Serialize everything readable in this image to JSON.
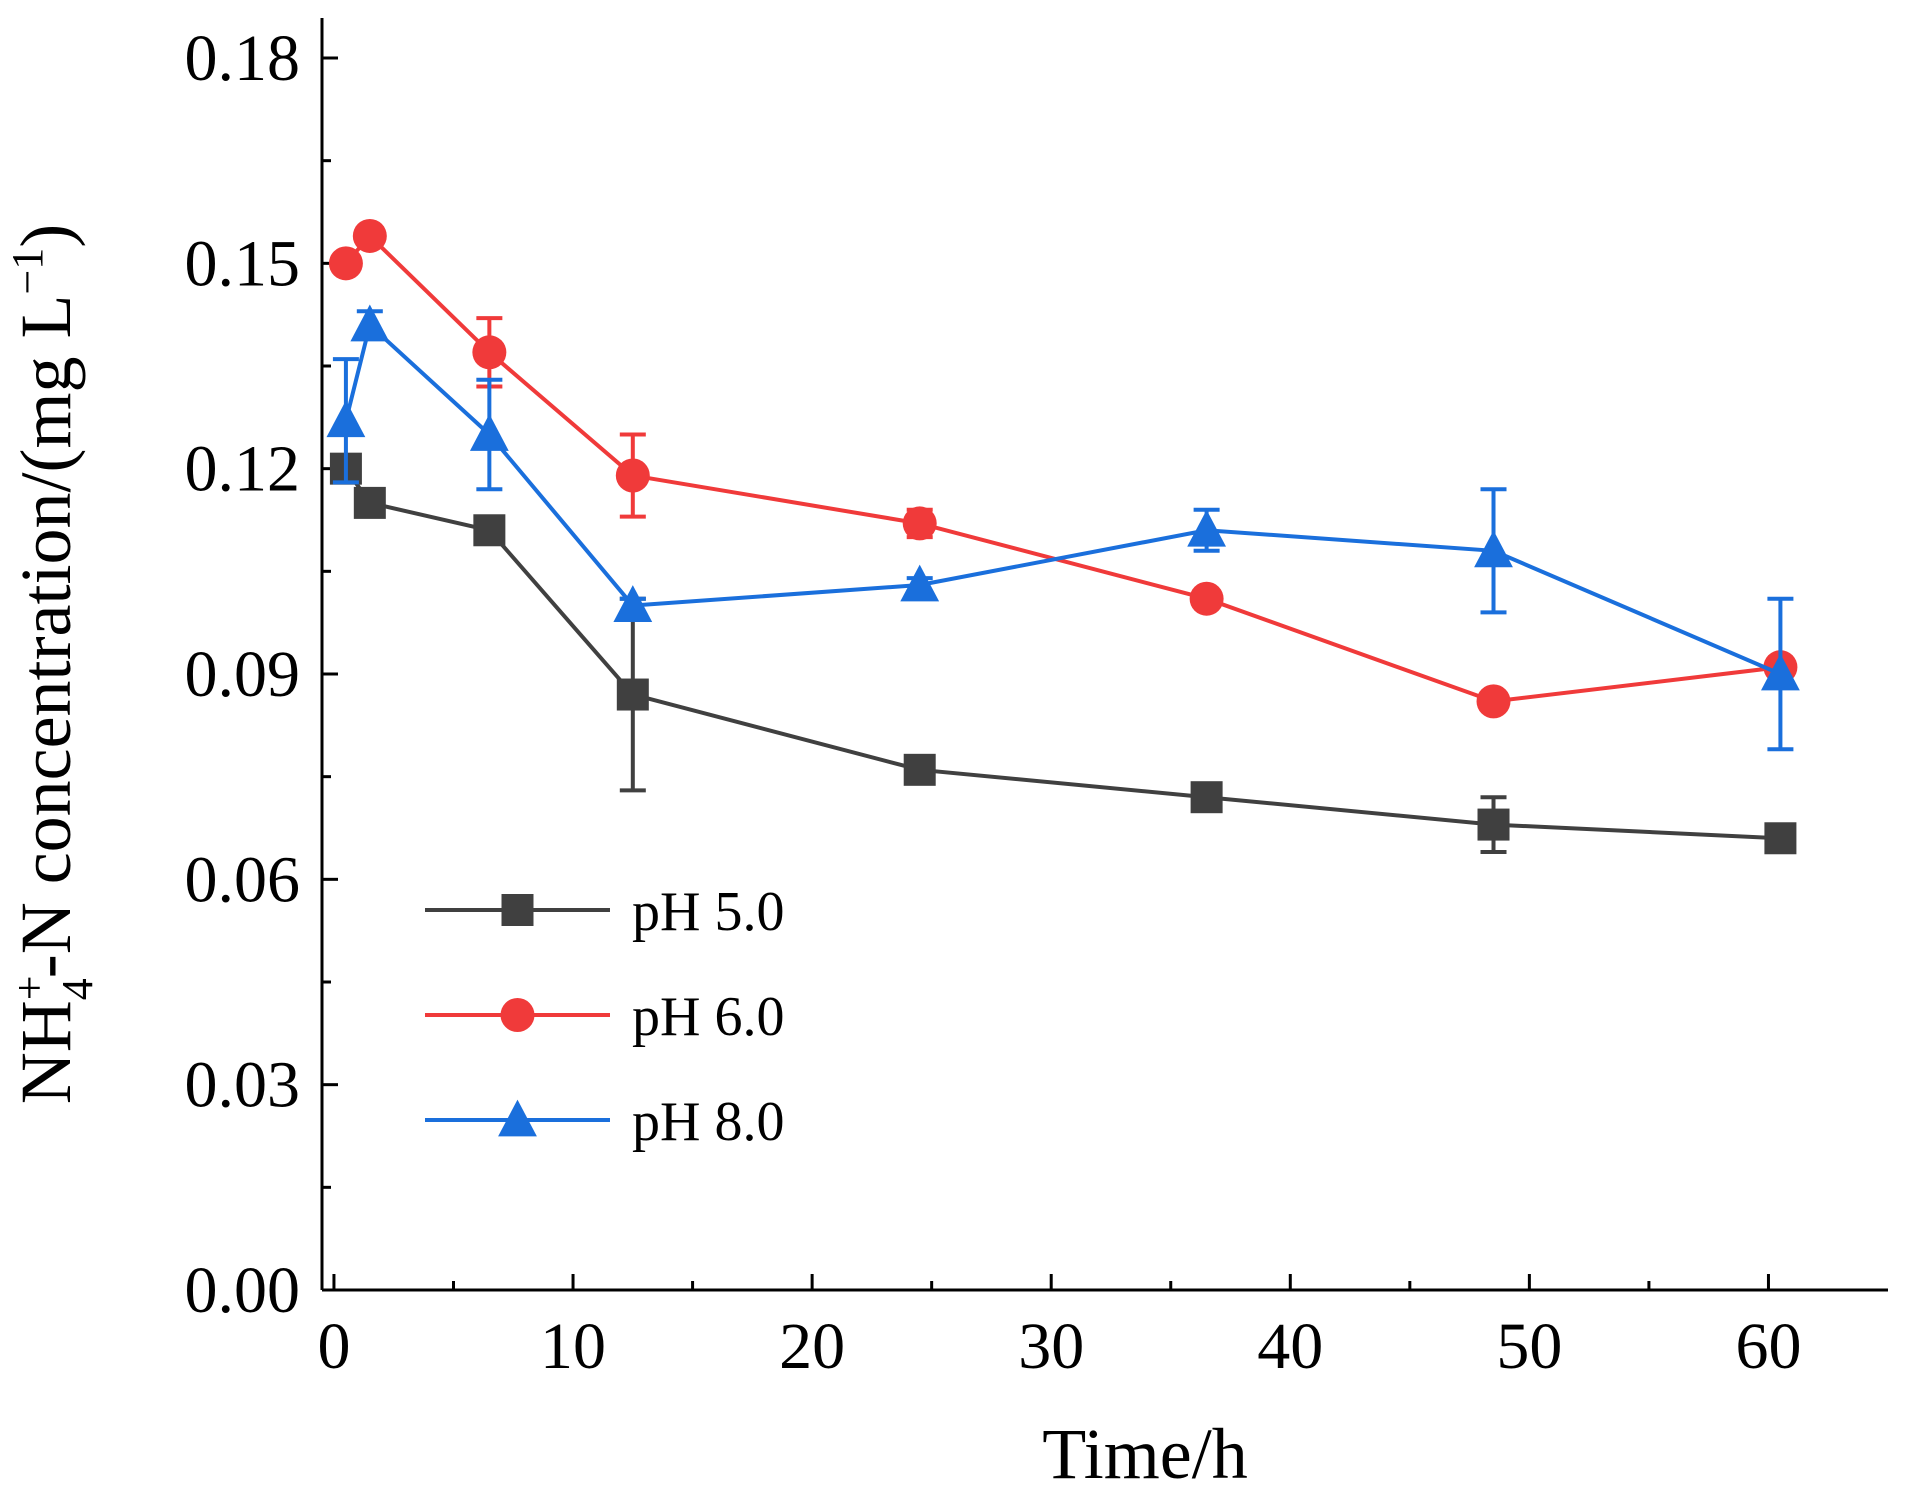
{
  "chart_data": {
    "type": "line",
    "xlabel": "Time/h",
    "ylabel": {
      "main": "NH",
      "sub": "4",
      "sup": "+",
      "rest": "-N concentration/(mg L",
      "exp": "−1",
      "close": ")"
    },
    "xlim": [
      -0.5,
      65
    ],
    "ylim": [
      0,
      0.18
    ],
    "xticks": [
      0,
      10,
      20,
      30,
      40,
      50,
      60
    ],
    "xtick_labels": [
      "0",
      "10",
      "20",
      "30",
      "40",
      "50",
      "60"
    ],
    "yticks": [
      0,
      0.03,
      0.06,
      0.09,
      0.12,
      0.15,
      0.18
    ],
    "ytick_labels": [
      "0.00",
      "0.03",
      "0.06",
      "0.09",
      "0.12",
      "0.15",
      "0.18"
    ],
    "legend_position": "lower-left",
    "series": [
      {
        "name": "pH 5.0",
        "color": "#404040",
        "marker": "square",
        "x": [
          0.5,
          1.5,
          6.5,
          12.5,
          24.5,
          36.5,
          48.5,
          60.5
        ],
        "y": [
          0.12,
          0.115,
          0.111,
          0.087,
          0.076,
          0.072,
          0.068,
          0.066
        ],
        "err": [
          0.002,
          0.001,
          0.002,
          0.014,
          0.001,
          0.001,
          0.004,
          0.001
        ]
      },
      {
        "name": "pH 6.0",
        "color": "#f03a3a",
        "marker": "circle",
        "x": [
          0.5,
          1.5,
          6.5,
          12.5,
          24.5,
          36.5,
          48.5,
          60.5
        ],
        "y": [
          0.15,
          0.154,
          0.137,
          0.119,
          0.112,
          0.101,
          0.086,
          0.091
        ],
        "err": [
          0.001,
          0.001,
          0.005,
          0.006,
          0.002,
          0.001,
          0.001,
          0.001
        ]
      },
      {
        "name": "pH 8.0",
        "color": "#1a6fdc",
        "marker": "triangle",
        "x": [
          0.5,
          1.5,
          6.5,
          12.5,
          24.5,
          36.5,
          48.5,
          60.5
        ],
        "y": [
          0.127,
          0.141,
          0.125,
          0.1,
          0.103,
          0.111,
          0.108,
          0.09
        ],
        "err": [
          0.009,
          0.002,
          0.008,
          0.001,
          0.001,
          0.003,
          0.009,
          0.011
        ]
      }
    ]
  }
}
